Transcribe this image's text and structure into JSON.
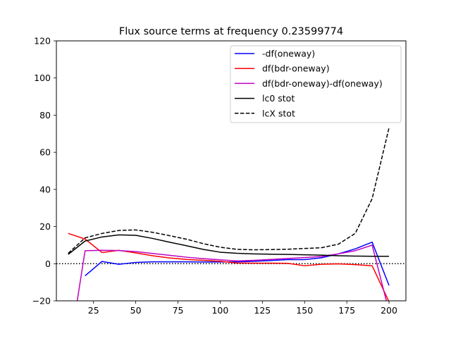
{
  "chart_data": {
    "type": "line",
    "title": "Flux source terms at frequency 0.23599774",
    "xlabel": "",
    "ylabel": "",
    "xlim": [
      3,
      210
    ],
    "ylim": [
      -20,
      120
    ],
    "xticks": [
      25,
      50,
      75,
      100,
      125,
      150,
      175,
      200
    ],
    "yticks": [
      -20,
      0,
      20,
      40,
      60,
      80,
      100,
      120
    ],
    "xtick_labels": [
      "25",
      "50",
      "75",
      "100",
      "125",
      "150",
      "175",
      "200"
    ],
    "ytick_labels": [
      "−20",
      "0",
      "20",
      "40",
      "60",
      "80",
      "100",
      "120"
    ],
    "grid": false,
    "legend_position": "top-right",
    "hline": {
      "y": 0,
      "style": "dotted",
      "color": "#000000"
    },
    "series": [
      {
        "name": "-df(oneway)",
        "color": "#0000ff",
        "style": "solid",
        "x": [
          20,
          30,
          40,
          50,
          60,
          70,
          80,
          90,
          100,
          110,
          120,
          130,
          140,
          150,
          160,
          170,
          180,
          190,
          200
        ],
        "y": [
          -6.5,
          1.2,
          -0.3,
          0.7,
          1.0,
          1.0,
          1.0,
          0.9,
          0.9,
          1.0,
          1.3,
          1.7,
          2.2,
          2.2,
          3.2,
          5.3,
          8.0,
          11.6,
          -11.7
        ]
      },
      {
        "name": "df(bdr-oneway)",
        "color": "#ff0000",
        "style": "solid",
        "x": [
          10,
          20,
          30,
          40,
          50,
          60,
          70,
          80,
          90,
          100,
          110,
          120,
          130,
          140,
          150,
          160,
          170,
          180,
          190,
          200
        ],
        "y": [
          16.3,
          13.3,
          6.0,
          7.2,
          5.8,
          4.3,
          3.1,
          2.3,
          1.8,
          1.3,
          0.4,
          0.3,
          0.3,
          0.2,
          -1.1,
          -0.3,
          -0.1,
          -0.5,
          -1.1,
          -20.5
        ]
      },
      {
        "name": "df(bdr-oneway)-df(oneway)",
        "color": "#bf00bf",
        "style": "solid",
        "x": [
          15,
          20,
          30,
          40,
          50,
          60,
          70,
          80,
          90,
          100,
          110,
          120,
          130,
          140,
          150,
          160,
          170,
          180,
          190,
          199
        ],
        "y": [
          -22,
          7.0,
          7.2,
          7.1,
          6.5,
          5.5,
          4.5,
          3.5,
          2.7,
          2.1,
          1.5,
          1.8,
          2.3,
          2.8,
          3.3,
          3.9,
          5.3,
          7.0,
          10.0,
          -22
        ]
      },
      {
        "name": "lc0 stot",
        "color": "#000000",
        "style": "solid",
        "x": [
          10,
          20,
          30,
          40,
          50,
          60,
          70,
          80,
          90,
          100,
          110,
          120,
          130,
          140,
          150,
          160,
          170,
          180,
          190,
          200
        ],
        "y": [
          5.0,
          12.2,
          14.4,
          15.5,
          15.3,
          13.6,
          11.6,
          9.7,
          7.7,
          6.2,
          5.6,
          5.3,
          5.1,
          5.0,
          4.8,
          4.6,
          4.3,
          4.1,
          4.0,
          4.0
        ]
      },
      {
        "name": "lcX stot",
        "color": "#000000",
        "style": "dashed",
        "x": [
          10,
          20,
          30,
          40,
          50,
          60,
          70,
          80,
          90,
          100,
          110,
          120,
          130,
          140,
          150,
          160,
          170,
          180,
          190,
          200
        ],
        "y": [
          5.6,
          13.9,
          16.3,
          17.9,
          18.2,
          16.9,
          15.1,
          13.2,
          10.8,
          8.9,
          7.7,
          7.5,
          7.6,
          7.8,
          8.2,
          8.6,
          10.5,
          16.3,
          35.0,
          73.2
        ]
      }
    ]
  }
}
